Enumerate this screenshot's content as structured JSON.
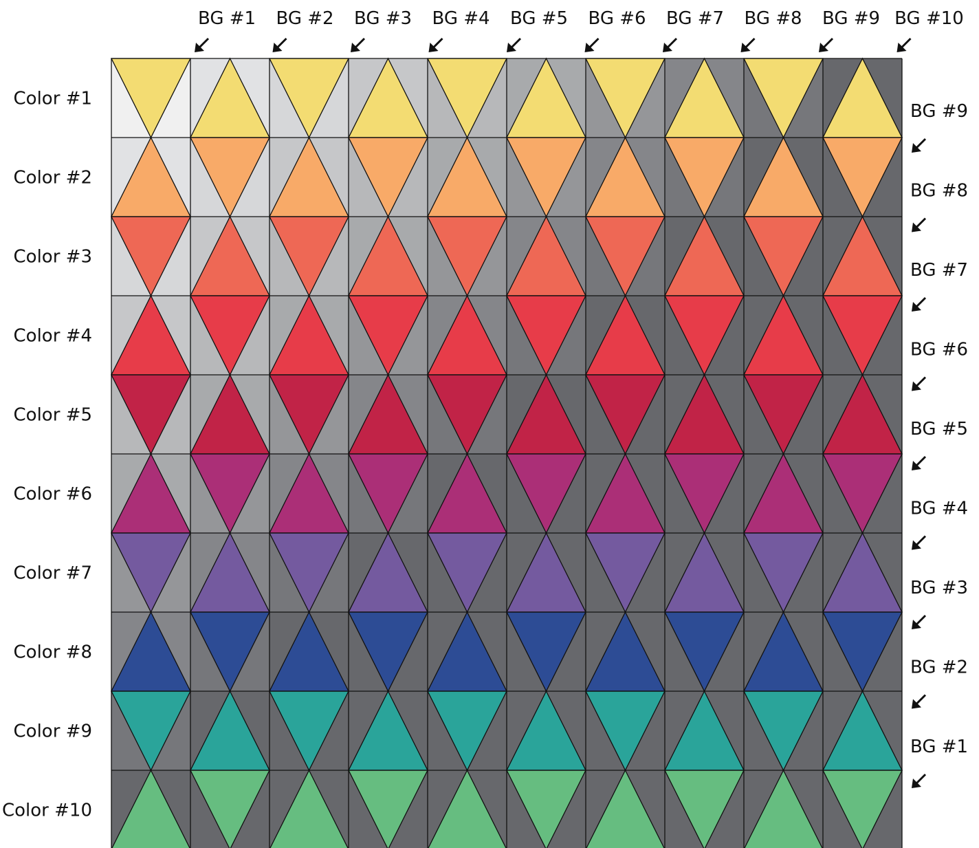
{
  "row_labels": [
    "Color #1",
    "Color #2",
    "Color #3",
    "Color #4",
    "Color #5",
    "Color #6",
    "Color #7",
    "Color #8",
    "Color #9",
    "Color #10"
  ],
  "top_labels": [
    "BG #1",
    "BG #2",
    "BG #3",
    "BG #4",
    "BG #5",
    "BG #6",
    "BG #7",
    "BG #8",
    "BG #9",
    "BG #10"
  ],
  "side_labels": [
    "BG #9",
    "BG #8",
    "BG #7",
    "BG #6",
    "BG #5",
    "BG #4",
    "BG #3",
    "BG #2",
    "BG #1"
  ],
  "colors": [
    "#f3dc72",
    "#f8aa68",
    "#ee6855",
    "#e73c49",
    "#c12347",
    "#ab2f77",
    "#745a9f",
    "#2d4c95",
    "#2aa49a",
    "#66bd80"
  ],
  "backgrounds": [
    "#f0f0f0",
    "#e1e2e4",
    "#d6d7d9",
    "#c6c7c9",
    "#b7b8ba",
    "#a8aaac",
    "#959699",
    "#85868a",
    "#76777b",
    "#67686c"
  ],
  "line_color": "#111111"
}
